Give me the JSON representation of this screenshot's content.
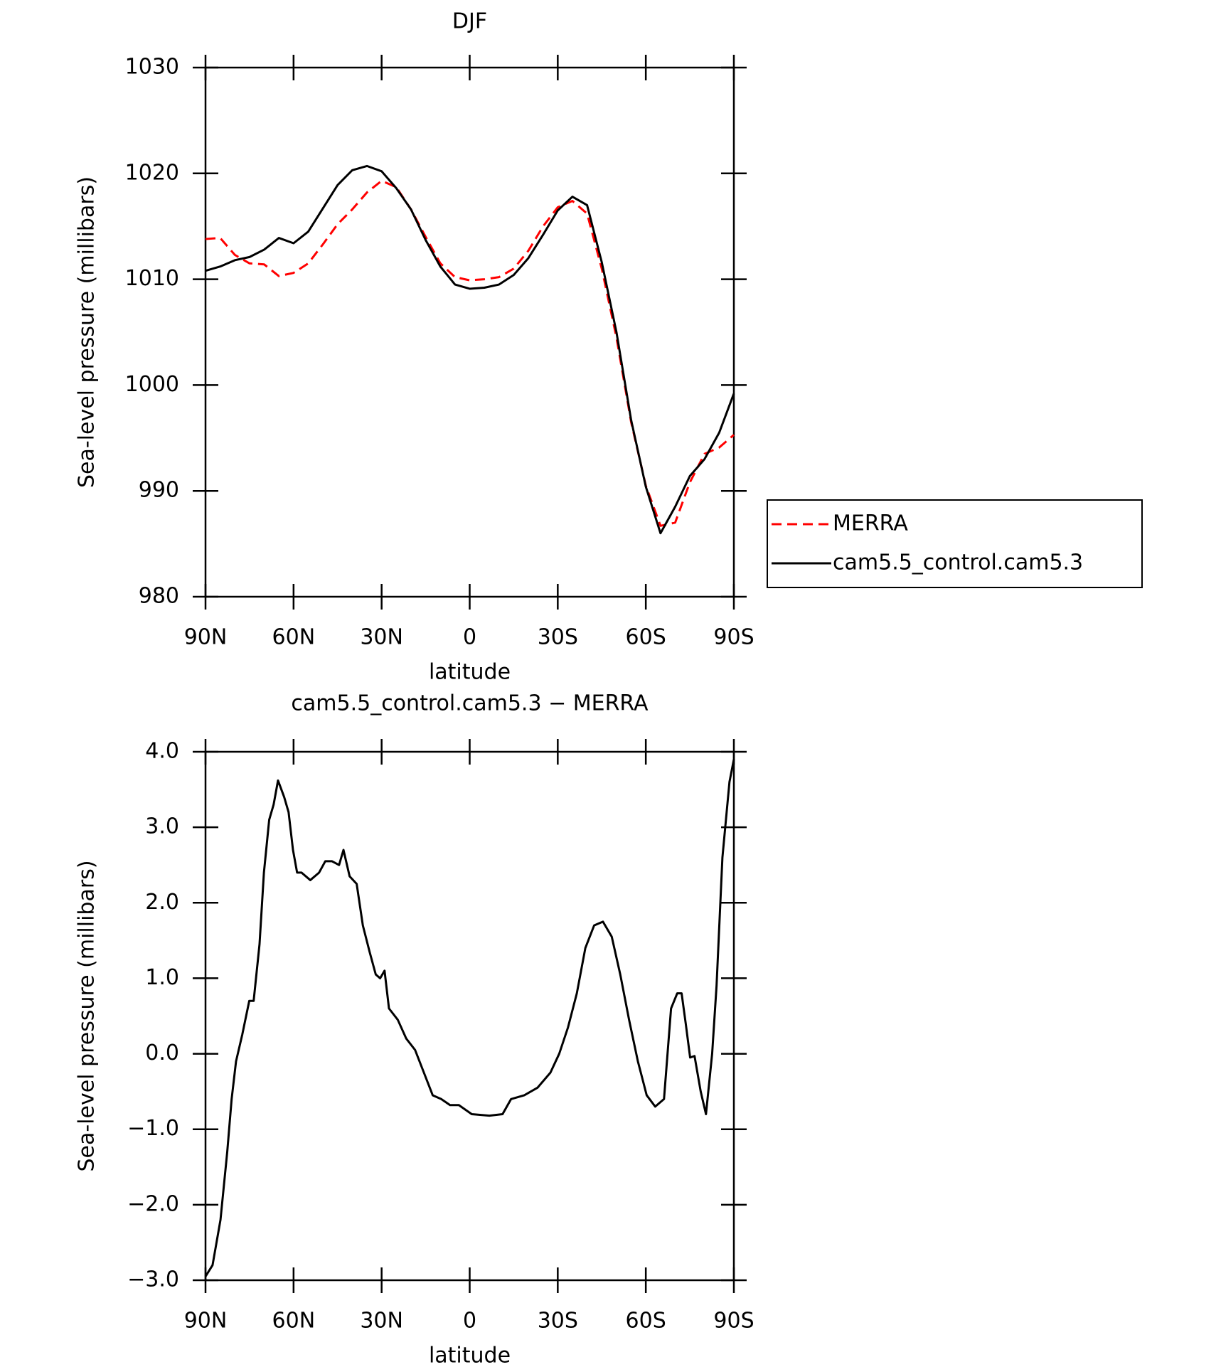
{
  "chart_data": [
    {
      "type": "line",
      "title": "DJF",
      "xlabel": "latitude",
      "ylabel": "Sea-level pressure (millibars)",
      "x": [
        90,
        85,
        80,
        75,
        70,
        65,
        60,
        55,
        50,
        45,
        40,
        35,
        30,
        25,
        20,
        15,
        10,
        5,
        0,
        -5,
        -10,
        -15,
        -20,
        -25,
        -30,
        -35,
        -40,
        -45,
        -50,
        -55,
        -60,
        -65,
        -70,
        -75,
        -80,
        -85,
        -90
      ],
      "series": [
        {
          "name": "MERRA",
          "color": "#ff0000",
          "dashed": true,
          "values": [
            1013.8,
            1013.9,
            1012.3,
            1011.5,
            1011.4,
            1010.3,
            1010.6,
            1011.5,
            1013.3,
            1015.2,
            1016.6,
            1018.2,
            1019.3,
            1018.7,
            1016.6,
            1014.0,
            1011.5,
            1010.2,
            1009.9,
            1010.0,
            1010.2,
            1011.0,
            1012.7,
            1015.0,
            1016.8,
            1017.4,
            1016.2,
            1011.0,
            1004.5,
            996.5,
            990.5,
            986.7,
            987.0,
            990.8,
            993.5,
            994.1,
            995.3
          ]
        },
        {
          "name": "cam5.5_control.cam5.3",
          "color": "#000000",
          "dashed": false,
          "values": [
            1010.8,
            1011.2,
            1011.8,
            1012.1,
            1012.8,
            1013.9,
            1013.4,
            1014.5,
            1016.7,
            1018.9,
            1020.3,
            1020.7,
            1020.2,
            1018.6,
            1016.6,
            1013.7,
            1011.2,
            1009.5,
            1009.1,
            1009.2,
            1009.5,
            1010.4,
            1012.0,
            1014.2,
            1016.5,
            1017.8,
            1017.0,
            1011.6,
            1005.0,
            996.7,
            990.4,
            986.0,
            988.5,
            991.4,
            993.0,
            995.5,
            999.2
          ]
        }
      ],
      "xlim": [
        90,
        -90
      ],
      "xticks": [
        {
          "value": 90,
          "label": "90N"
        },
        {
          "value": 60,
          "label": "60N"
        },
        {
          "value": 30,
          "label": "30N"
        },
        0,
        {
          "value": -30,
          "label": "30S"
        },
        {
          "value": -60,
          "label": "60S"
        },
        {
          "value": -90,
          "label": "90S"
        }
      ],
      "ylim": [
        980,
        1030
      ],
      "yticks": [
        980,
        990,
        1000,
        1010,
        1020,
        1030
      ],
      "legend": "right"
    },
    {
      "type": "line",
      "title": "cam5.5_control.cam5.3 − MERRA",
      "xlabel": "latitude",
      "ylabel": "Sea-level pressure (millibars)",
      "x": [
        90,
        87.6,
        84.9,
        82.6,
        81.1,
        79.6,
        77.5,
        75.1,
        73.6,
        71.6,
        70.1,
        68.3,
        66.8,
        65.3,
        63.2,
        61.7,
        60.2,
        58.8,
        57.3,
        54.3,
        51.3,
        49.2,
        46.9,
        44.5,
        43.0,
        40.9,
        38.5,
        36.4,
        34.1,
        32.0,
        30.5,
        29.0,
        27.5,
        24.5,
        21.6,
        18.6,
        15.6,
        12.6,
        9.7,
        6.7,
        3.7,
        -0.7,
        -6.7,
        -11.2,
        -14.1,
        -18.6,
        -23.1,
        -27.5,
        -30.5,
        -33.5,
        -36.5,
        -39.4,
        -42.4,
        -45.4,
        -48.4,
        -51.3,
        -54.3,
        -57.3,
        -60.3,
        -63.2,
        -66.2,
        -68.6,
        -70.7,
        -72.2,
        -73.6,
        -75.1,
        -76.6,
        -78.7,
        -80.5,
        -82.6,
        -84.1,
        -86.1,
        -88.5,
        -90
      ],
      "series": [
        {
          "name": "cam5.5_control.cam5.3 − MERRA",
          "color": "#000000",
          "dashed": false,
          "values": [
            -2.95,
            -2.8,
            -2.2,
            -1.3,
            -0.6,
            -0.1,
            0.25,
            0.7,
            0.7,
            1.45,
            2.4,
            3.1,
            3.3,
            3.62,
            3.4,
            3.2,
            2.7,
            2.4,
            2.4,
            2.3,
            2.4,
            2.55,
            2.55,
            2.5,
            2.7,
            2.35,
            2.25,
            1.7,
            1.35,
            1.05,
            1.0,
            1.1,
            0.6,
            0.45,
            0.2,
            0.05,
            -0.25,
            -0.55,
            -0.6,
            -0.68,
            -0.68,
            -0.8,
            -0.82,
            -0.8,
            -0.6,
            -0.55,
            -0.45,
            -0.25,
            0.0,
            0.35,
            0.8,
            1.4,
            1.7,
            1.75,
            1.55,
            1.05,
            0.45,
            -0.1,
            -0.55,
            -0.7,
            -0.6,
            0.6,
            0.8,
            0.8,
            0.4,
            -0.05,
            -0.03,
            -0.5,
            -0.8,
            0.0,
            0.9,
            2.6,
            3.6,
            3.9
          ]
        }
      ],
      "xlim": [
        90,
        -90
      ],
      "xticks": [
        {
          "value": 90,
          "label": "90N"
        },
        {
          "value": 60,
          "label": "60N"
        },
        {
          "value": 30,
          "label": "30N"
        },
        0,
        {
          "value": -30,
          "label": "30S"
        },
        {
          "value": -60,
          "label": "60S"
        },
        {
          "value": -90,
          "label": "90S"
        }
      ],
      "ylim": [
        -3,
        4
      ],
      "yticks": [
        {
          "value": -3,
          "label": "−3.0"
        },
        {
          "value": -2,
          "label": "−2.0"
        },
        {
          "value": -1,
          "label": "−1.0"
        },
        {
          "value": 0,
          "label": "0.0"
        },
        {
          "value": 1,
          "label": "1.0"
        },
        {
          "value": 2,
          "label": "2.0"
        },
        {
          "value": 3,
          "label": "3.0"
        },
        {
          "value": 4,
          "label": "4.0"
        }
      ]
    }
  ]
}
